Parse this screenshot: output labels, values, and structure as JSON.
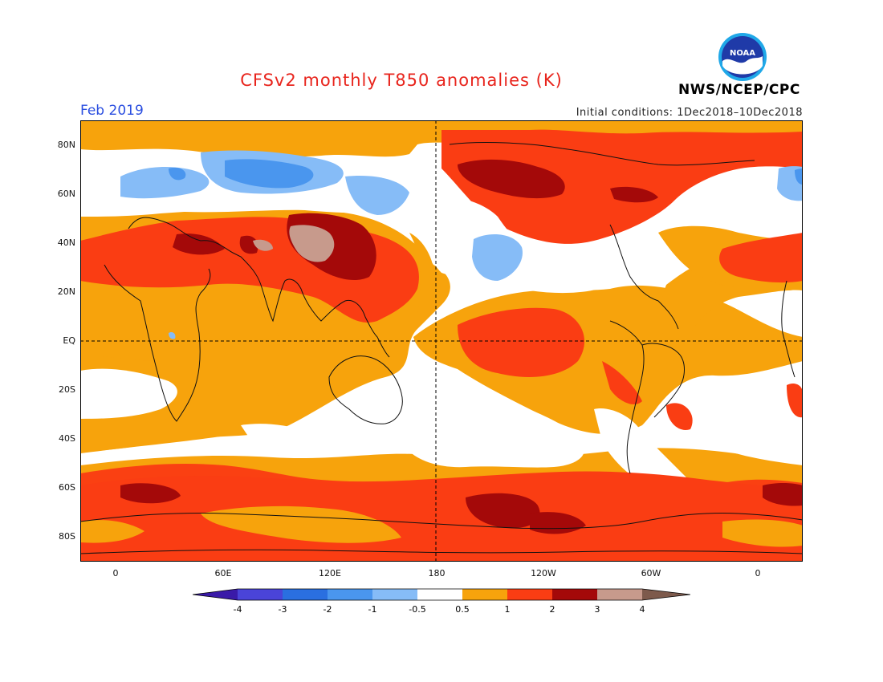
{
  "title": "CFSv2 monthly T850 anomalies (K)",
  "valid_month": "Feb 2019",
  "initial_conditions": "Initial conditions: 1Dec2018–10Dec2018",
  "agency": "NWS/NCEP/CPC",
  "logo_text": "NOAA",
  "lat_labels": [
    "80N",
    "60N",
    "40N",
    "20N",
    "EQ",
    "20S",
    "40S",
    "60S",
    "80S"
  ],
  "lon_labels": [
    "0",
    "60E",
    "120E",
    "180",
    "120W",
    "60W",
    "0"
  ],
  "colorbar": {
    "tick_labels": [
      "-4",
      "-3",
      "-2",
      "-1",
      "-0.5",
      "0.5",
      "1",
      "2",
      "3",
      "4"
    ],
    "colors": [
      "#3a1aa8",
      "#4a44d8",
      "#2a6fe0",
      "#4a96ee",
      "#86bcf7",
      "#ffffff",
      "#f7a30c",
      "#fa3d13",
      "#a40909",
      "#c79a8c",
      "#7d5a4c"
    ]
  }
}
